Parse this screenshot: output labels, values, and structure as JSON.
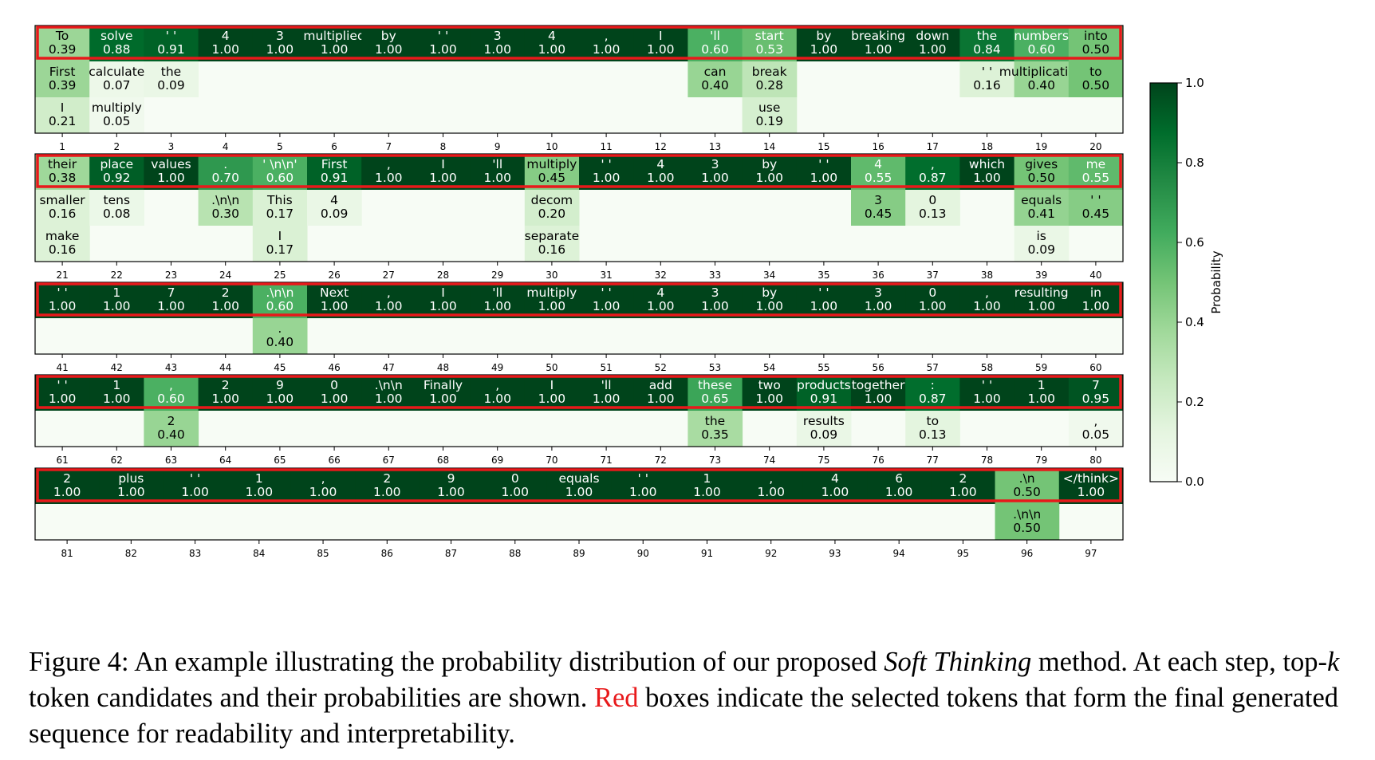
{
  "colorbar": {
    "label": "Probability",
    "ticks": [
      "0.0",
      "0.2",
      "0.4",
      "0.6",
      "0.8",
      "1.0"
    ],
    "colors": [
      "#f7fcf5",
      "#e5f5e0",
      "#c7e9c0",
      "#a1d99b",
      "#74c476",
      "#41ab5d",
      "#238b45",
      "#006d2c",
      "#00441b"
    ]
  },
  "selection_box_color": "#e8191b",
  "caption": {
    "p1": "Figure 4: An example illustrating the probability distribution of our proposed ",
    "method": "Soft Thinking",
    "p2": " method. At each step, top-",
    "k": "k",
    "p3": " token candidates and their probabilities are shown. ",
    "red": "Red",
    "p4": " boxes indicate the selected tokens that form the final generated sequence for readability and interpretability."
  },
  "chart_data": {
    "type": "heatmap",
    "value_range": [
      0,
      1
    ],
    "rows": [
      {
        "steps": [
          1,
          2,
          3,
          4,
          5,
          6,
          7,
          8,
          9,
          10,
          11,
          12,
          13,
          14,
          15,
          16,
          17,
          18,
          19,
          20
        ],
        "depth": 3,
        "columns": [
          [
            [
              "To",
              "0.39"
            ],
            [
              "First",
              "0.39"
            ],
            [
              "I",
              "0.21"
            ]
          ],
          [
            [
              "solve",
              "0.88"
            ],
            [
              "calculate",
              "0.07"
            ],
            [
              "multiply",
              "0.05"
            ]
          ],
          [
            [
              "' '",
              "0.91"
            ],
            [
              "the",
              "0.09"
            ]
          ],
          [
            [
              "4",
              "1.00"
            ]
          ],
          [
            [
              "3",
              "1.00"
            ]
          ],
          [
            [
              "multiplied",
              "1.00"
            ]
          ],
          [
            [
              "by",
              "1.00"
            ]
          ],
          [
            [
              "' '",
              "1.00"
            ]
          ],
          [
            [
              "3",
              "1.00"
            ]
          ],
          [
            [
              "4",
              "1.00"
            ]
          ],
          [
            [
              ",",
              "1.00"
            ]
          ],
          [
            [
              "I",
              "1.00"
            ]
          ],
          [
            [
              "'ll",
              "0.60"
            ],
            [
              "can",
              "0.40"
            ]
          ],
          [
            [
              "start",
              "0.53"
            ],
            [
              "break",
              "0.28"
            ],
            [
              "use",
              "0.19"
            ]
          ],
          [
            [
              "by",
              "1.00"
            ]
          ],
          [
            [
              "breaking",
              "1.00"
            ]
          ],
          [
            [
              "down",
              "1.00"
            ]
          ],
          [
            [
              "the",
              "0.84"
            ],
            [
              "' '",
              "0.16"
            ]
          ],
          [
            [
              "numbers",
              "0.60"
            ],
            [
              "multiplication",
              "0.40"
            ]
          ],
          [
            [
              "into",
              "0.50"
            ],
            [
              "to",
              "0.50"
            ]
          ]
        ]
      },
      {
        "steps": [
          21,
          22,
          23,
          24,
          25,
          26,
          27,
          28,
          29,
          30,
          31,
          32,
          33,
          34,
          35,
          36,
          37,
          38,
          39,
          40
        ],
        "depth": 3,
        "columns": [
          [
            [
              "their",
              "0.38"
            ],
            [
              "smaller",
              "0.16"
            ],
            [
              "make",
              "0.16"
            ]
          ],
          [
            [
              "place",
              "0.92"
            ],
            [
              "tens",
              "0.08"
            ]
          ],
          [
            [
              "values",
              "1.00"
            ]
          ],
          [
            [
              ".",
              "0.70"
            ],
            [
              ".\\n\\n",
              "0.30"
            ]
          ],
          [
            [
              "' \\n\\n'",
              "0.60"
            ],
            [
              "This",
              "0.17"
            ],
            [
              "I",
              "0.17"
            ]
          ],
          [
            [
              "First",
              "0.91"
            ],
            [
              "4",
              "0.09"
            ]
          ],
          [
            [
              ",",
              "1.00"
            ]
          ],
          [
            [
              "I",
              "1.00"
            ]
          ],
          [
            [
              "'ll",
              "1.00"
            ]
          ],
          [
            [
              "multiply",
              "0.45"
            ],
            [
              "decom",
              "0.20"
            ],
            [
              "separate",
              "0.16"
            ]
          ],
          [
            [
              "' '",
              "1.00"
            ]
          ],
          [
            [
              "4",
              "1.00"
            ]
          ],
          [
            [
              "3",
              "1.00"
            ]
          ],
          [
            [
              "by",
              "1.00"
            ]
          ],
          [
            [
              "' '",
              "1.00"
            ]
          ],
          [
            [
              "4",
              "0.55"
            ],
            [
              "3",
              "0.45"
            ]
          ],
          [
            [
              ",",
              "0.87"
            ],
            [
              "0",
              "0.13"
            ]
          ],
          [
            [
              "which",
              "1.00"
            ]
          ],
          [
            [
              "gives",
              "0.50"
            ],
            [
              "equals",
              "0.41"
            ],
            [
              "is",
              "0.09"
            ]
          ],
          [
            [
              "me",
              "0.55"
            ],
            [
              "' '",
              "0.45"
            ]
          ]
        ]
      },
      {
        "steps": [
          41,
          42,
          43,
          44,
          45,
          46,
          47,
          48,
          49,
          50,
          51,
          52,
          53,
          54,
          55,
          56,
          57,
          58,
          59,
          60
        ],
        "depth": 2,
        "columns": [
          [
            [
              "' '",
              "1.00"
            ]
          ],
          [
            [
              "1",
              "1.00"
            ]
          ],
          [
            [
              "7",
              "1.00"
            ]
          ],
          [
            [
              "2",
              "1.00"
            ]
          ],
          [
            [
              ".\\n\\n",
              "0.60"
            ],
            [
              ".",
              "0.40"
            ]
          ],
          [
            [
              "Next",
              "1.00"
            ]
          ],
          [
            [
              ",",
              "1.00"
            ]
          ],
          [
            [
              "I",
              "1.00"
            ]
          ],
          [
            [
              "'ll",
              "1.00"
            ]
          ],
          [
            [
              "multiply",
              "1.00"
            ]
          ],
          [
            [
              "' '",
              "1.00"
            ]
          ],
          [
            [
              "4",
              "1.00"
            ]
          ],
          [
            [
              "3",
              "1.00"
            ]
          ],
          [
            [
              "by",
              "1.00"
            ]
          ],
          [
            [
              "' '",
              "1.00"
            ]
          ],
          [
            [
              "3",
              "1.00"
            ]
          ],
          [
            [
              "0",
              "1.00"
            ]
          ],
          [
            [
              ",",
              "1.00"
            ]
          ],
          [
            [
              "resulting",
              "1.00"
            ]
          ],
          [
            [
              "in",
              "1.00"
            ]
          ]
        ]
      },
      {
        "steps": [
          61,
          62,
          63,
          64,
          65,
          66,
          67,
          68,
          69,
          70,
          71,
          72,
          73,
          74,
          75,
          76,
          77,
          78,
          79,
          80
        ],
        "depth": 2,
        "columns": [
          [
            [
              "' '",
              "1.00"
            ]
          ],
          [
            [
              "1",
              "1.00"
            ]
          ],
          [
            [
              ",",
              "0.60"
            ],
            [
              "2",
              "0.40"
            ]
          ],
          [
            [
              "2",
              "1.00"
            ]
          ],
          [
            [
              "9",
              "1.00"
            ]
          ],
          [
            [
              "0",
              "1.00"
            ]
          ],
          [
            [
              ".\\n\\n",
              "1.00"
            ]
          ],
          [
            [
              "Finally",
              "1.00"
            ]
          ],
          [
            [
              ",",
              "1.00"
            ]
          ],
          [
            [
              "I",
              "1.00"
            ]
          ],
          [
            [
              "'ll",
              "1.00"
            ]
          ],
          [
            [
              "add",
              "1.00"
            ]
          ],
          [
            [
              "these",
              "0.65"
            ],
            [
              "the",
              "0.35"
            ]
          ],
          [
            [
              "two",
              "1.00"
            ]
          ],
          [
            [
              "products",
              "0.91"
            ],
            [
              "results",
              "0.09"
            ]
          ],
          [
            [
              "together",
              "1.00"
            ]
          ],
          [
            [
              ":",
              "0.87"
            ],
            [
              "to",
              "0.13"
            ]
          ],
          [
            [
              "' '",
              "1.00"
            ]
          ],
          [
            [
              "1",
              "1.00"
            ]
          ],
          [
            [
              "7",
              "0.95"
            ],
            [
              ",",
              "0.05"
            ]
          ]
        ]
      },
      {
        "steps": [
          81,
          82,
          83,
          84,
          85,
          86,
          87,
          88,
          89,
          90,
          91,
          92,
          93,
          94,
          95,
          96,
          97
        ],
        "depth": 2,
        "columns": [
          [
            [
              "2",
              "1.00"
            ]
          ],
          [
            [
              "plus",
              "1.00"
            ]
          ],
          [
            [
              "' '",
              "1.00"
            ]
          ],
          [
            [
              "1",
              "1.00"
            ]
          ],
          [
            [
              ",",
              "1.00"
            ]
          ],
          [
            [
              "2",
              "1.00"
            ]
          ],
          [
            [
              "9",
              "1.00"
            ]
          ],
          [
            [
              "0",
              "1.00"
            ]
          ],
          [
            [
              "equals",
              "1.00"
            ]
          ],
          [
            [
              "' '",
              "1.00"
            ]
          ],
          [
            [
              "1",
              "1.00"
            ]
          ],
          [
            [
              ",",
              "1.00"
            ]
          ],
          [
            [
              "4",
              "1.00"
            ]
          ],
          [
            [
              "6",
              "1.00"
            ]
          ],
          [
            [
              "2",
              "1.00"
            ]
          ],
          [
            [
              ".\\n",
              "0.50"
            ],
            [
              ".\\n\\n",
              "0.50"
            ]
          ],
          [
            [
              "</think>",
              "1.00"
            ]
          ]
        ]
      }
    ]
  }
}
